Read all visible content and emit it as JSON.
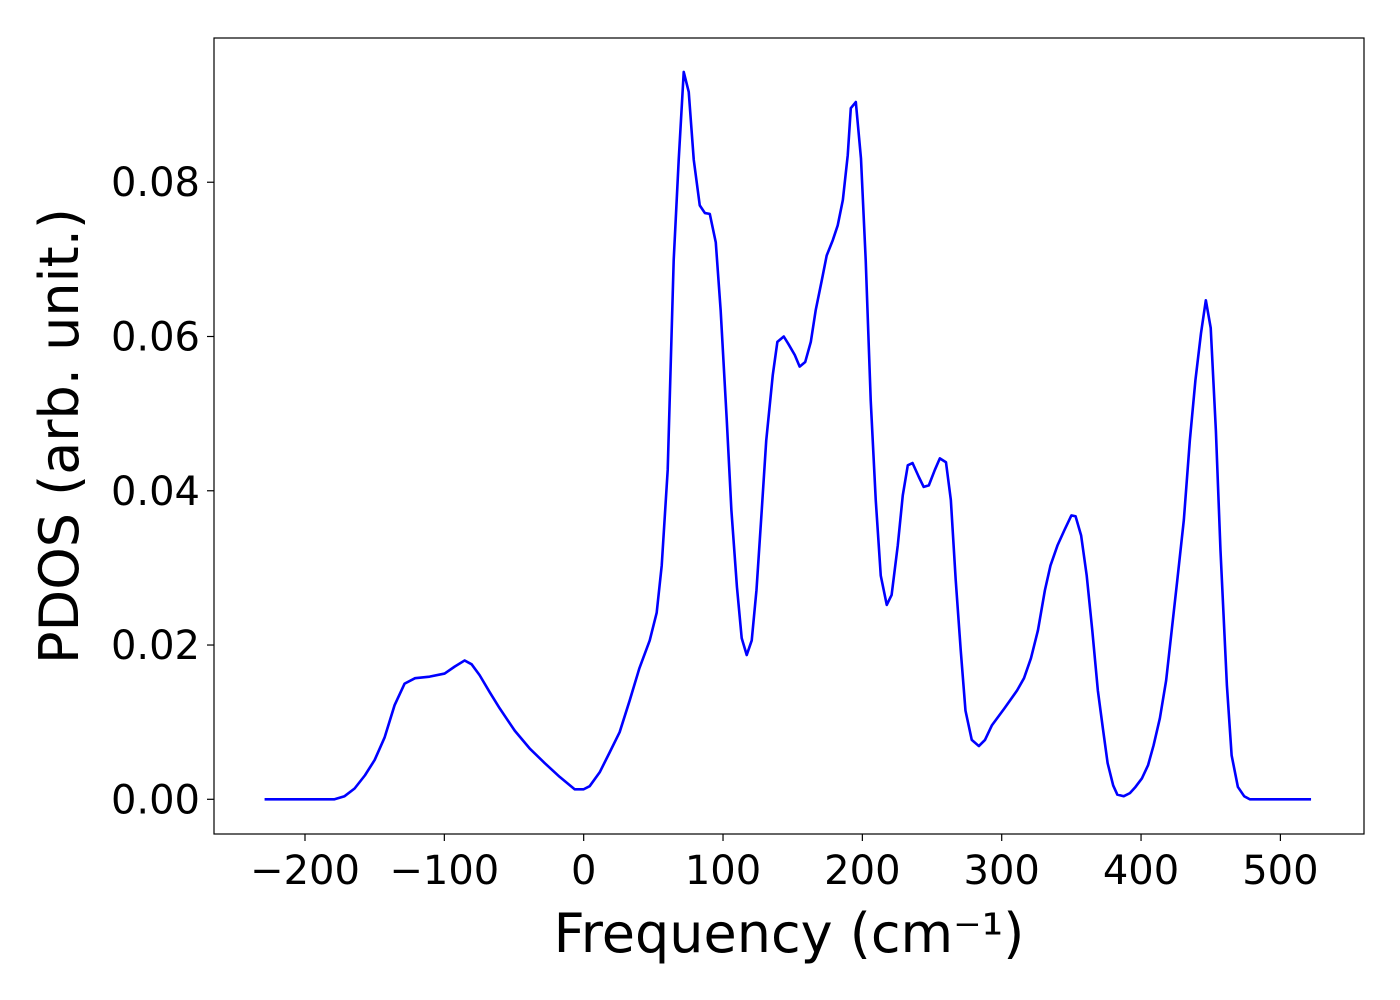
{
  "chart_data": {
    "type": "line",
    "xlabel": "Frequency (cm⁻¹)",
    "ylabel": "PDOS (arb. unit.)",
    "x": [
      -229,
      -200,
      -178.8,
      -171.6,
      -164.4,
      -157,
      -150,
      -142.9,
      -135.7,
      -128.5,
      -121,
      -110.6,
      -99.8,
      -92.6,
      -85.4,
      -80.4,
      -74.7,
      -67.5,
      -60.3,
      -49.5,
      -38.8,
      -28,
      -17.2,
      -6.5,
      0,
      4.3,
      11.5,
      18.7,
      25.8,
      33,
      40,
      47.4,
      52.4,
      56,
      60.3,
      64.6,
      68.2,
      71.8,
      75.4,
      79,
      83.3,
      87,
      90.5,
      94.8,
      98.3,
      102.7,
      106,
      110,
      113.4,
      117,
      120.6,
      124,
      127.8,
      131,
      135.7,
      139,
      143.6,
      147,
      151.5,
      155,
      159,
      163,
      166.5,
      170.9,
      174.4,
      178.8,
      182.3,
      186,
      189.5,
      191.7,
      195.3,
      199,
      202.4,
      206,
      209.6,
      213.2,
      217.5,
      221,
      225.4,
      229,
      232.6,
      236,
      240.5,
      244,
      247.7,
      252,
      255.6,
      260,
      263.5,
      267,
      270.6,
      274,
      278.5,
      283.6,
      288,
      293,
      302,
      311,
      316,
      321,
      326,
      331,
      335,
      340,
      345,
      350,
      353,
      357,
      361,
      365,
      369,
      372.6,
      376,
      380,
      383,
      387.6,
      392,
      396,
      400.6,
      405,
      409,
      413.5,
      418,
      422,
      426,
      430.7,
      435,
      439,
      443,
      446.5,
      450,
      453.7,
      457,
      461.6,
      465,
      469.5,
      474,
      478,
      500,
      522
    ],
    "series": [
      {
        "color": "#0000ff",
        "values": [
          0,
          0,
          0,
          0.0004,
          0.0014,
          0.0031,
          0.0051,
          0.008,
          0.0122,
          0.015,
          0.0157,
          0.0159,
          0.0163,
          0.0172,
          0.018,
          0.0175,
          0.0161,
          0.0139,
          0.0118,
          0.0089,
          0.0066,
          0.0047,
          0.0029,
          0.0013,
          0.0013,
          0.0017,
          0.0035,
          0.0061,
          0.0087,
          0.0128,
          0.017,
          0.0206,
          0.0242,
          0.0303,
          0.0427,
          0.0699,
          0.0829,
          0.0943,
          0.0917,
          0.0829,
          0.077,
          0.076,
          0.0759,
          0.0722,
          0.0634,
          0.0491,
          0.0375,
          0.0275,
          0.0209,
          0.0187,
          0.0206,
          0.0271,
          0.0375,
          0.0465,
          0.055,
          0.0593,
          0.06,
          0.059,
          0.0576,
          0.0561,
          0.0567,
          0.0593,
          0.0634,
          0.0673,
          0.0705,
          0.0725,
          0.0744,
          0.0777,
          0.0835,
          0.0896,
          0.0904,
          0.0831,
          0.0699,
          0.0517,
          0.0388,
          0.029,
          0.0252,
          0.0265,
          0.0329,
          0.0394,
          0.0433,
          0.0436,
          0.0418,
          0.0405,
          0.0407,
          0.0427,
          0.0442,
          0.0437,
          0.0388,
          0.0284,
          0.0193,
          0.0115,
          0.0077,
          0.0069,
          0.0077,
          0.0096,
          0.0118,
          0.0141,
          0.0157,
          0.0183,
          0.0219,
          0.0271,
          0.0303,
          0.0329,
          0.0349,
          0.0368,
          0.0367,
          0.0342,
          0.029,
          0.0219,
          0.0141,
          0.0092,
          0.0047,
          0.0018,
          0.0006,
          0.0004,
          0.0008,
          0.0016,
          0.0027,
          0.0044,
          0.007,
          0.0105,
          0.0154,
          0.0219,
          0.0284,
          0.0362,
          0.0465,
          0.0543,
          0.0604,
          0.0647,
          0.0611,
          0.0478,
          0.0323,
          0.0148,
          0.0057,
          0.0016,
          0.0004,
          0,
          0,
          0
        ]
      }
    ],
    "xlim": [
      -265.3,
      560
    ],
    "ylim": [
      -0.0045,
      0.0987
    ],
    "xticks": [
      {
        "value": -200,
        "label": "−200"
      },
      {
        "value": -100,
        "label": "−100"
      },
      0,
      100,
      200,
      300,
      400,
      500
    ],
    "yticks": [
      {
        "value": 0,
        "label": "0.00"
      },
      {
        "value": 0.02,
        "label": "0.02"
      },
      {
        "value": 0.04,
        "label": "0.04"
      },
      {
        "value": 0.06,
        "label": "0.06"
      },
      {
        "value": 0.08,
        "label": "0.08"
      }
    ]
  }
}
